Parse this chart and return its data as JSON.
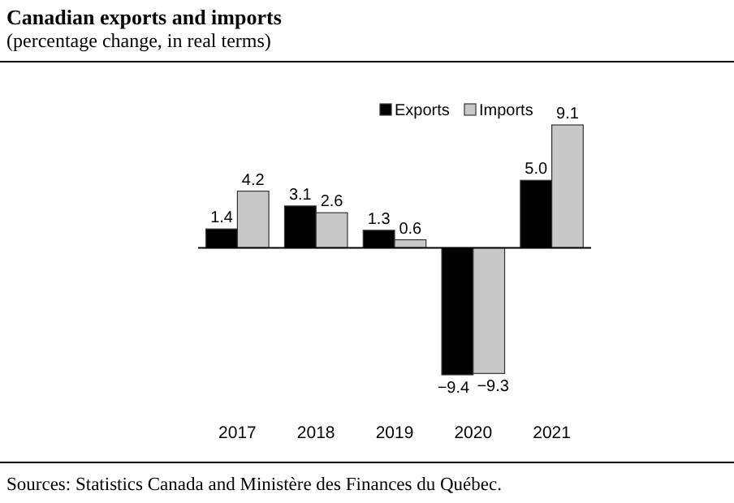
{
  "chart_data": {
    "type": "bar",
    "title": "Canadian exports and imports",
    "subtitle": "(percentage change, in real terms)",
    "categories": [
      "2017",
      "2018",
      "2019",
      "2020",
      "2021"
    ],
    "series": [
      {
        "name": "Exports",
        "color": "#000000",
        "values": [
          1.4,
          3.1,
          1.3,
          -9.4,
          5.0
        ],
        "value_labels": [
          "1.4",
          "3.1",
          "1.3",
          "−9.4",
          "5.0"
        ]
      },
      {
        "name": "Imports",
        "color": "#c8c8c8",
        "values": [
          4.2,
          2.6,
          0.6,
          -9.3,
          9.1
        ],
        "value_labels": [
          "4.2",
          "2.6",
          "0.6",
          "−9.3",
          "9.1"
        ]
      }
    ],
    "legend": "top right",
    "tick_labels": "x",
    "annotations": [
      "Sources: Statistics Canada and Ministère des Finances du Québec."
    ]
  }
}
